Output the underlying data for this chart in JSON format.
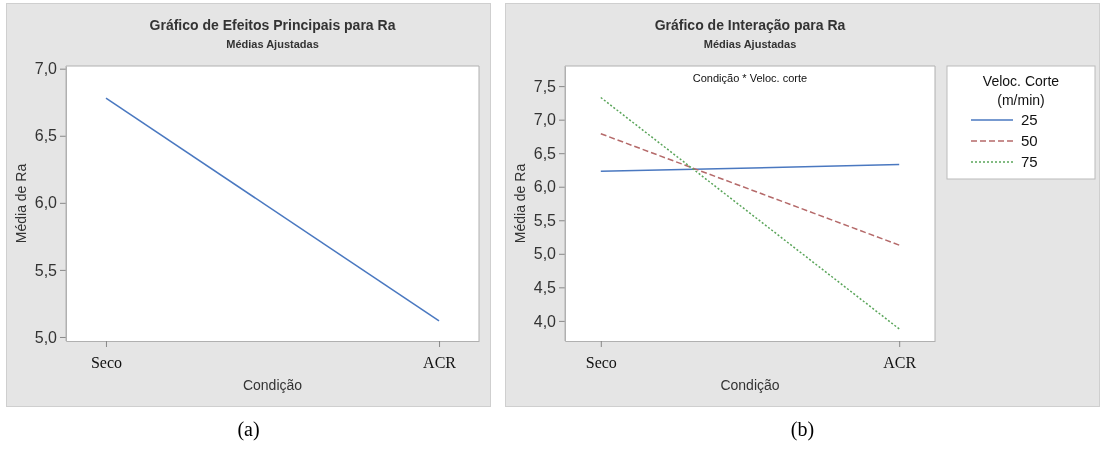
{
  "chart_data": [
    {
      "type": "line",
      "title": "Gráfico de Efeitos Principais para Ra",
      "subtitle": "Médias Ajustadas",
      "xlabel": "Condição",
      "ylabel": "Média de Ra",
      "categories": [
        "Seco",
        "ACR"
      ],
      "ylim": [
        4.97,
        7.02
      ],
      "yticks": [
        {
          "value": 5,
          "label": "5,0"
        },
        {
          "value": 5.5,
          "label": "5,5"
        },
        {
          "value": 6,
          "label": "6,0"
        },
        {
          "value": 6.5,
          "label": "6,5"
        },
        {
          "value": 7,
          "label": "7,0"
        }
      ],
      "series": [
        {
          "color": "#4a78c0",
          "values": [
            6.78,
            5.12
          ]
        }
      ],
      "legend": false,
      "grid": false,
      "marker": "none",
      "line_style": "solid",
      "annotations": [
        "(a)"
      ]
    },
    {
      "type": "line",
      "title": "Gráfico de Interação para Ra",
      "subtitle": "Médias Ajustadas",
      "xlabel": "Condição",
      "ylabel": "Média de Ra",
      "legend_title": "Veloc. Corte\n(m/min)",
      "categories": [
        "Seco",
        "ACR"
      ],
      "ylim": [
        3.7,
        7.8
      ],
      "yticks": [
        {
          "value": 4,
          "label": "4,0"
        },
        {
          "value": 4.5,
          "label": "4,5"
        },
        {
          "value": 5,
          "label": "5,0"
        },
        {
          "value": 5.5,
          "label": "5,5"
        },
        {
          "value": 6,
          "label": "6,0"
        },
        {
          "value": 6.5,
          "label": "6,5"
        },
        {
          "value": 7,
          "label": "7,0"
        },
        {
          "value": 7.5,
          "label": "7,5"
        }
      ],
      "series": [
        {
          "name": "25",
          "color": "#4a78c0",
          "values": [
            6.23,
            6.33
          ],
          "line_style": "solid"
        },
        {
          "name": "50",
          "color": "#b56a6a",
          "values": [
            6.79,
            5.13
          ],
          "line_style": "dashed"
        },
        {
          "name": "75",
          "color": "#5aa55a",
          "values": [
            7.33,
            3.88
          ],
          "line_style": "dotted"
        }
      ],
      "legend": "right",
      "grid": false,
      "marker": "none",
      "annotations": [
        "Condição * Veloc. corte",
        "(b)"
      ]
    }
  ]
}
